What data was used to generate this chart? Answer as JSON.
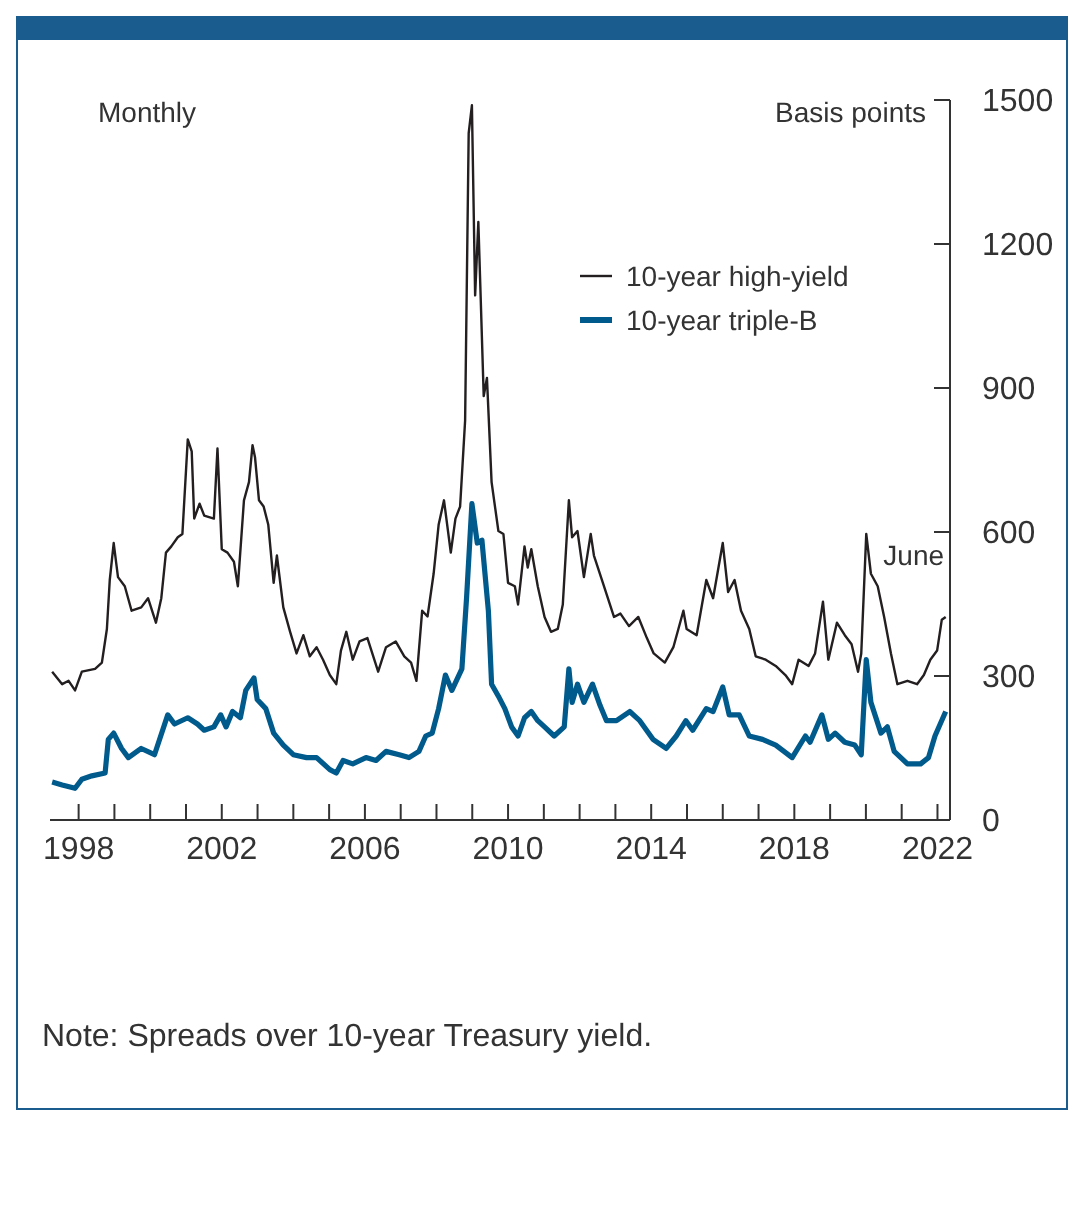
{
  "chart_data": {
    "type": "line",
    "ylabel": "Basis points",
    "annotations": [
      "Monthly",
      {
        "text": "June",
        "x": 2022.23,
        "y": 423
      },
      "Note: Spreads over 10-year Treasury yield."
    ],
    "xlim": [
      1997.2,
      2022.35
    ],
    "xticks": [
      1998,
      {
        "value": 1999,
        "label": null
      },
      {
        "value": 2000,
        "label": null
      },
      {
        "value": 2001,
        "label": null
      },
      2002,
      {
        "value": 2003,
        "label": null
      },
      {
        "value": 2004,
        "label": null
      },
      {
        "value": 2005,
        "label": null
      },
      2006,
      {
        "value": 2007,
        "label": null
      },
      {
        "value": 2008,
        "label": null
      },
      {
        "value": 2009,
        "label": null
      },
      2010,
      {
        "value": 2011,
        "label": null
      },
      {
        "value": 2012,
        "label": null
      },
      {
        "value": 2013,
        "label": null
      },
      2014,
      {
        "value": 2015,
        "label": null
      },
      {
        "value": 2016,
        "label": null
      },
      {
        "value": 2017,
        "label": null
      },
      2018,
      {
        "value": 2019,
        "label": null
      },
      {
        "value": 2020,
        "label": null
      },
      {
        "value": 2021,
        "label": null
      },
      2022
    ],
    "ylim": [
      0,
      1500
    ],
    "yticks": [
      0,
      300,
      600,
      900,
      1200,
      1500
    ],
    "legend": "top right",
    "marker": "none",
    "line_style": "solid",
    "series": [
      {
        "name": "10-year high-yield",
        "color": "#231f20",
        "x": [
          1997.26,
          1997.54,
          1997.72,
          1997.9,
          1998.09,
          1998.46,
          1998.65,
          1998.79,
          1998.87,
          1998.98,
          1999.1,
          1999.29,
          1999.48,
          1999.75,
          1999.94,
          2000.16,
          2000.31,
          2000.44,
          2000.59,
          2000.77,
          2000.9,
          2001.05,
          2001.16,
          2001.23,
          2001.38,
          2001.51,
          2001.69,
          2001.78,
          2001.88,
          2002.0,
          2002.16,
          2002.34,
          2002.45,
          2002.62,
          2002.76,
          2002.86,
          2002.93,
          2003.04,
          2003.17,
          2003.3,
          2003.45,
          2003.54,
          2003.72,
          2003.91,
          2004.09,
          2004.28,
          2004.46,
          2004.65,
          2004.83,
          2005.02,
          2005.2,
          2005.33,
          2005.48,
          2005.66,
          2005.85,
          2006.07,
          2006.37,
          2006.59,
          2006.86,
          2007.1,
          2007.29,
          2007.44,
          2007.6,
          2007.75,
          2007.92,
          2008.06,
          2008.21,
          2008.4,
          2008.53,
          2008.66,
          2008.8,
          2008.9,
          2008.99,
          2009.08,
          2009.17,
          2009.32,
          2009.41,
          2009.54,
          2009.73,
          2009.87,
          2010.0,
          2010.19,
          2010.28,
          2010.46,
          2010.55,
          2010.65,
          2010.83,
          2011.02,
          2011.2,
          2011.39,
          2011.53,
          2011.7,
          2011.79,
          2011.94,
          2012.12,
          2012.31,
          2012.4,
          2012.68,
          2012.96,
          2013.14,
          2013.38,
          2013.64,
          2013.88,
          2014.07,
          2014.38,
          2014.62,
          2014.9,
          2014.99,
          2015.27,
          2015.54,
          2015.73,
          2016.0,
          2016.15,
          2016.33,
          2016.51,
          2016.74,
          2016.92,
          2017.2,
          2017.48,
          2017.75,
          2017.94,
          2018.12,
          2018.4,
          2018.58,
          2018.8,
          2018.95,
          2019.19,
          2019.41,
          2019.6,
          2019.78,
          2019.87,
          2020.01,
          2020.14,
          2020.33,
          2020.51,
          2020.7,
          2020.88,
          2021.16,
          2021.43,
          2021.62,
          2021.8,
          2021.99,
          2022.12,
          2022.23
        ],
        "values": [
          309,
          283,
          290,
          270,
          309,
          315,
          328,
          398,
          500,
          577,
          506,
          487,
          436,
          443,
          462,
          411,
          462,
          557,
          570,
          589,
          596,
          793,
          768,
          628,
          659,
          634,
          630,
          628,
          774,
          564,
          557,
          538,
          487,
          666,
          704,
          781,
          755,
          666,
          653,
          615,
          494,
          551,
          443,
          392,
          347,
          385,
          341,
          360,
          334,
          302,
          283,
          353,
          392,
          334,
          372,
          379,
          309,
          360,
          372,
          341,
          328,
          290,
          436,
          424,
          513,
          615,
          666,
          557,
          628,
          653,
          832,
          1431,
          1489,
          1093,
          1246,
          883,
          921,
          704,
          602,
          596,
          494,
          487,
          449,
          570,
          526,
          564,
          487,
          423,
          392,
          398,
          449,
          666,
          589,
          602,
          506,
          596,
          551,
          487,
          423,
          430,
          404,
          423,
          379,
          347,
          328,
          360,
          436,
          398,
          385,
          500,
          462,
          577,
          475,
          500,
          436,
          398,
          341,
          334,
          321,
          302,
          283,
          334,
          321,
          347,
          455,
          334,
          411,
          385,
          366,
          309,
          347,
          596,
          513,
          487,
          423,
          347,
          283,
          290,
          283,
          302,
          334,
          353,
          417,
          423
        ]
      },
      {
        "name": "10-year triple-B",
        "color": "#005a8c",
        "x": [
          1997.26,
          1997.54,
          1997.9,
          1998.09,
          1998.37,
          1998.74,
          1998.83,
          1998.98,
          1999.2,
          1999.39,
          1999.75,
          2000.12,
          2000.49,
          2000.68,
          2001.05,
          2001.32,
          2001.51,
          2001.78,
          2001.97,
          2002.12,
          2002.3,
          2002.52,
          2002.67,
          2002.9,
          2002.99,
          2003.23,
          2003.45,
          2003.72,
          2004.0,
          2004.37,
          2004.65,
          2005.02,
          2005.2,
          2005.39,
          2005.66,
          2006.03,
          2006.31,
          2006.59,
          2006.96,
          2007.23,
          2007.51,
          2007.7,
          2007.88,
          2008.06,
          2008.25,
          2008.43,
          2008.71,
          2008.84,
          2008.99,
          2009.14,
          2009.27,
          2009.45,
          2009.54,
          2009.73,
          2009.91,
          2010.1,
          2010.28,
          2010.46,
          2010.65,
          2010.83,
          2011.02,
          2011.29,
          2011.57,
          2011.7,
          2011.79,
          2011.94,
          2012.12,
          2012.36,
          2012.57,
          2012.75,
          2013.03,
          2013.4,
          2013.68,
          2014.05,
          2014.42,
          2014.7,
          2014.97,
          2015.16,
          2015.54,
          2015.73,
          2016.0,
          2016.18,
          2016.46,
          2016.74,
          2017.11,
          2017.48,
          2017.94,
          2018.31,
          2018.44,
          2018.77,
          2018.95,
          2019.14,
          2019.41,
          2019.69,
          2019.87,
          2020.01,
          2020.14,
          2020.42,
          2020.6,
          2020.79,
          2021.16,
          2021.53,
          2021.75,
          2021.93,
          2022.23
        ],
        "values": [
          79,
          73,
          66,
          85,
          92,
          98,
          168,
          181,
          149,
          130,
          149,
          136,
          219,
          200,
          213,
          200,
          187,
          194,
          219,
          194,
          226,
          213,
          270,
          296,
          251,
          232,
          181,
          156,
          136,
          130,
          130,
          105,
          98,
          124,
          117,
          130,
          124,
          143,
          136,
          130,
          143,
          175,
          181,
          232,
          302,
          270,
          315,
          462,
          659,
          577,
          583,
          436,
          283,
          258,
          232,
          194,
          175,
          213,
          226,
          207,
          194,
          175,
          194,
          315,
          245,
          283,
          245,
          283,
          239,
          207,
          207,
          226,
          207,
          168,
          149,
          175,
          207,
          187,
          232,
          226,
          277,
          219,
          219,
          175,
          168,
          156,
          130,
          175,
          162,
          219,
          168,
          181,
          162,
          156,
          136,
          334,
          245,
          181,
          194,
          143,
          117,
          117,
          130,
          175,
          226
        ]
      }
    ]
  }
}
